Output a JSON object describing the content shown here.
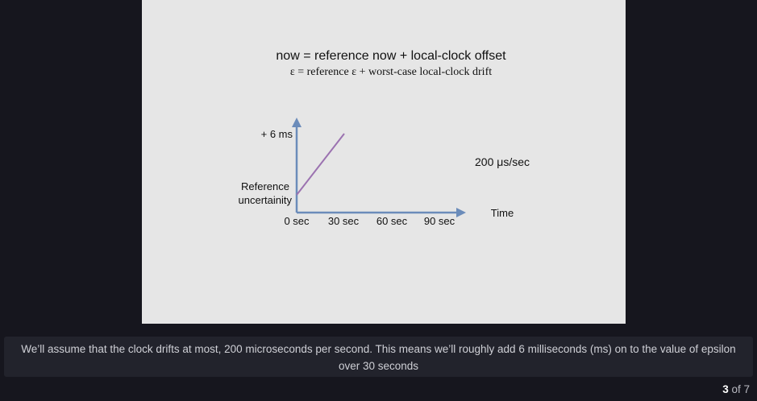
{
  "slide": {
    "line1": "now = reference now + local-clock offset",
    "line2": "ε  = reference ε + worst-case local-clock drift",
    "diagram": {
      "y_label": "+ 6 ms",
      "origin_label_1": "Reference",
      "origin_label_2": "uncertainity",
      "x_ticks": [
        "0 sec",
        "30 sec",
        "60 sec",
        "90 sec"
      ],
      "x_axis_label": "Time",
      "rate_label": "200 μs/sec",
      "axis_color": "#6b8cba",
      "line_color": "#9b72b0"
    }
  },
  "caption": {
    "text": "We’ll assume that the clock drifts at most, 200 microseconds per second. This means we’ll roughly add 6 milliseconds (ms) on to the value of epsilon over 30 seconds"
  },
  "pager": {
    "current": "3",
    "separator": " of ",
    "total": "7"
  }
}
